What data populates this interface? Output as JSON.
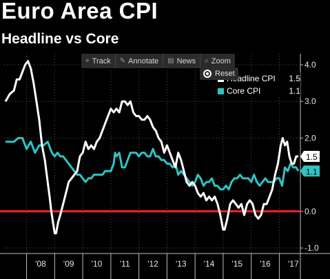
{
  "header": {
    "title": "Euro Area CPI",
    "subtitle": "Headline vs Core"
  },
  "toolbar": {
    "items": [
      {
        "label": "Track",
        "icon": "crosshair-icon",
        "glyph": "⌖"
      },
      {
        "label": "Annotate",
        "icon": "pencil-icon",
        "glyph": "✎"
      },
      {
        "label": "News",
        "icon": "news-icon",
        "glyph": "▤"
      },
      {
        "label": "Zoom",
        "icon": "magnifier-icon",
        "glyph": "⌕"
      }
    ],
    "reset_label": "Reset"
  },
  "legend": [
    {
      "name": "Headline CPI",
      "value": "1.5",
      "color": "#ffffff"
    },
    {
      "name": "Core CPI",
      "value": "1.1",
      "color": "#2ec4c4"
    }
  ],
  "colors": {
    "background": "#000000",
    "headline": "#ffffff",
    "core": "#2ec4c4",
    "zero_line": "#ff2020"
  },
  "chart_data": {
    "type": "line",
    "title": "Euro Area CPI",
    "subtitle": "Headline vs Core",
    "x_range": [
      2007.2,
      2017.75
    ],
    "y_range": [
      -1.15,
      4.3
    ],
    "y_ticks": [
      {
        "value": 4.0,
        "label": "4.0"
      },
      {
        "value": 3.0,
        "label": "3.0"
      },
      {
        "value": 2.0,
        "label": "2.0"
      },
      {
        "value": 0.0,
        "label": "0.0"
      },
      {
        "value": -1.0,
        "label": "-1.0"
      }
    ],
    "x_ticks": [
      {
        "value": 2008,
        "label": "'08"
      },
      {
        "value": 2009,
        "label": "'09"
      },
      {
        "value": 2010,
        "label": "'10"
      },
      {
        "value": 2011,
        "label": "'11"
      },
      {
        "value": 2012,
        "label": "'12"
      },
      {
        "value": 2013,
        "label": "'13"
      },
      {
        "value": 2014,
        "label": "'14"
      },
      {
        "value": 2015,
        "label": "'15"
      },
      {
        "value": 2016,
        "label": "'16"
      },
      {
        "value": 2017,
        "label": "'17"
      }
    ],
    "reference_line": {
      "y": 0.0
    },
    "last_value_labels": [
      {
        "series": "Headline CPI",
        "value": 1.5,
        "label": "1.5"
      },
      {
        "series": "Core CPI",
        "value": 1.1,
        "label": "1.1"
      }
    ],
    "series": [
      {
        "name": "Headline CPI",
        "color": "#ffffff",
        "points": [
          [
            2007.25,
            3.0
          ],
          [
            2007.4,
            3.2
          ],
          [
            2007.55,
            3.3
          ],
          [
            2007.65,
            3.6
          ],
          [
            2007.75,
            3.6
          ],
          [
            2007.85,
            3.8
          ],
          [
            2007.95,
            4.0
          ],
          [
            2008.05,
            4.1
          ],
          [
            2008.15,
            3.9
          ],
          [
            2008.25,
            3.5
          ],
          [
            2008.35,
            3.0
          ],
          [
            2008.45,
            2.5
          ],
          [
            2008.55,
            1.8
          ],
          [
            2008.65,
            1.4
          ],
          [
            2008.75,
            0.8
          ],
          [
            2008.82,
            0.4
          ],
          [
            2008.88,
            0.0
          ],
          [
            2008.94,
            -0.3
          ],
          [
            2009.0,
            -0.6
          ],
          [
            2009.05,
            -0.6
          ],
          [
            2009.12,
            -0.3
          ],
          [
            2009.2,
            -0.1
          ],
          [
            2009.3,
            0.2
          ],
          [
            2009.4,
            0.5
          ],
          [
            2009.5,
            0.8
          ],
          [
            2009.6,
            0.9
          ],
          [
            2009.7,
            1.0
          ],
          [
            2009.8,
            1.1
          ],
          [
            2009.9,
            1.5
          ],
          [
            2010.0,
            1.6
          ],
          [
            2010.1,
            1.9
          ],
          [
            2010.2,
            1.7
          ],
          [
            2010.3,
            1.8
          ],
          [
            2010.4,
            1.7
          ],
          [
            2010.5,
            1.9
          ],
          [
            2010.6,
            2.0
          ],
          [
            2010.7,
            2.2
          ],
          [
            2010.8,
            2.4
          ],
          [
            2010.9,
            2.6
          ],
          [
            2011.0,
            2.8
          ],
          [
            2011.1,
            2.7
          ],
          [
            2011.2,
            2.8
          ],
          [
            2011.3,
            2.7
          ],
          [
            2011.4,
            3.0
          ],
          [
            2011.5,
            3.0
          ],
          [
            2011.6,
            2.9
          ],
          [
            2011.7,
            3.0
          ],
          [
            2011.8,
            2.7
          ],
          [
            2011.9,
            2.6
          ],
          [
            2012.0,
            2.6
          ],
          [
            2012.1,
            2.5
          ],
          [
            2012.2,
            2.5
          ],
          [
            2012.3,
            2.6
          ],
          [
            2012.4,
            2.5
          ],
          [
            2012.5,
            2.3
          ],
          [
            2012.6,
            2.2
          ],
          [
            2012.7,
            2.0
          ],
          [
            2012.8,
            1.9
          ],
          [
            2012.9,
            1.6
          ],
          [
            2013.0,
            1.8
          ],
          [
            2013.1,
            1.6
          ],
          [
            2013.2,
            1.4
          ],
          [
            2013.3,
            1.2
          ],
          [
            2013.4,
            1.6
          ],
          [
            2013.5,
            1.4
          ],
          [
            2013.6,
            1.1
          ],
          [
            2013.7,
            0.8
          ],
          [
            2013.8,
            0.7
          ],
          [
            2013.9,
            0.8
          ],
          [
            2014.0,
            0.7
          ],
          [
            2014.1,
            0.5
          ],
          [
            2014.2,
            0.4
          ],
          [
            2014.3,
            0.5
          ],
          [
            2014.4,
            0.3
          ],
          [
            2014.5,
            0.4
          ],
          [
            2014.6,
            0.3
          ],
          [
            2014.7,
            0.4
          ],
          [
            2014.8,
            0.2
          ],
          [
            2014.9,
            -0.1
          ],
          [
            2015.0,
            -0.5
          ],
          [
            2015.05,
            -0.5
          ],
          [
            2015.15,
            -0.2
          ],
          [
            2015.25,
            0.2
          ],
          [
            2015.35,
            0.3
          ],
          [
            2015.45,
            0.2
          ],
          [
            2015.55,
            0.1
          ],
          [
            2015.65,
            0.2
          ],
          [
            2015.75,
            -0.1
          ],
          [
            2015.85,
            0.2
          ],
          [
            2015.95,
            0.3
          ],
          [
            2016.05,
            0.2
          ],
          [
            2016.15,
            -0.1
          ],
          [
            2016.25,
            -0.2
          ],
          [
            2016.35,
            -0.1
          ],
          [
            2016.45,
            0.2
          ],
          [
            2016.55,
            0.2
          ],
          [
            2016.65,
            0.4
          ],
          [
            2016.75,
            0.6
          ],
          [
            2016.85,
            1.0
          ],
          [
            2016.95,
            1.3
          ],
          [
            2017.05,
            1.8
          ],
          [
            2017.12,
            2.0
          ],
          [
            2017.2,
            1.8
          ],
          [
            2017.28,
            1.9
          ],
          [
            2017.36,
            1.5
          ],
          [
            2017.44,
            1.3
          ],
          [
            2017.52,
            1.3
          ],
          [
            2017.6,
            1.5
          ],
          [
            2017.68,
            1.5
          ]
        ]
      },
      {
        "name": "Core CPI",
        "color": "#2ec4c4",
        "points": [
          [
            2007.25,
            1.9
          ],
          [
            2007.4,
            1.9
          ],
          [
            2007.55,
            1.9
          ],
          [
            2007.7,
            2.0
          ],
          [
            2007.85,
            2.0
          ],
          [
            2008.0,
            1.7
          ],
          [
            2008.15,
            1.9
          ],
          [
            2008.3,
            1.6
          ],
          [
            2008.45,
            1.8
          ],
          [
            2008.6,
            1.8
          ],
          [
            2008.75,
            1.9
          ],
          [
            2008.9,
            1.6
          ],
          [
            2009.0,
            1.5
          ],
          [
            2009.1,
            1.6
          ],
          [
            2009.2,
            1.5
          ],
          [
            2009.3,
            1.5
          ],
          [
            2009.4,
            1.4
          ],
          [
            2009.5,
            1.3
          ],
          [
            2009.6,
            1.2
          ],
          [
            2009.7,
            1.1
          ],
          [
            2009.8,
            1.0
          ],
          [
            2009.9,
            1.0
          ],
          [
            2010.0,
            0.9
          ],
          [
            2010.1,
            0.8
          ],
          [
            2010.2,
            0.9
          ],
          [
            2010.3,
            0.9
          ],
          [
            2010.4,
            1.0
          ],
          [
            2010.5,
            1.0
          ],
          [
            2010.6,
            1.0
          ],
          [
            2010.7,
            1.0
          ],
          [
            2010.8,
            1.1
          ],
          [
            2010.9,
            1.1
          ],
          [
            2011.0,
            1.1
          ],
          [
            2011.1,
            1.3
          ],
          [
            2011.15,
            1.6
          ],
          [
            2011.2,
            1.5
          ],
          [
            2011.3,
            1.6
          ],
          [
            2011.4,
            1.2
          ],
          [
            2011.5,
            1.2
          ],
          [
            2011.6,
            1.4
          ],
          [
            2011.7,
            1.6
          ],
          [
            2011.8,
            1.6
          ],
          [
            2011.9,
            1.6
          ],
          [
            2012.0,
            1.5
          ],
          [
            2012.1,
            1.6
          ],
          [
            2012.2,
            1.6
          ],
          [
            2012.3,
            1.5
          ],
          [
            2012.4,
            1.5
          ],
          [
            2012.5,
            1.7
          ],
          [
            2012.6,
            1.5
          ],
          [
            2012.7,
            1.5
          ],
          [
            2012.8,
            1.4
          ],
          [
            2012.9,
            1.4
          ],
          [
            2013.0,
            1.3
          ],
          [
            2013.1,
            1.3
          ],
          [
            2013.2,
            1.2
          ],
          [
            2013.3,
            1.3
          ],
          [
            2013.4,
            1.0
          ],
          [
            2013.5,
            1.1
          ],
          [
            2013.6,
            1.0
          ],
          [
            2013.7,
            0.9
          ],
          [
            2013.8,
            0.8
          ],
          [
            2013.9,
            0.7
          ],
          [
            2014.0,
            0.8
          ],
          [
            2014.1,
            1.0
          ],
          [
            2014.2,
            0.9
          ],
          [
            2014.3,
            0.7
          ],
          [
            2014.4,
            0.8
          ],
          [
            2014.5,
            0.8
          ],
          [
            2014.6,
            0.9
          ],
          [
            2014.7,
            0.7
          ],
          [
            2014.8,
            0.7
          ],
          [
            2014.9,
            0.6
          ],
          [
            2015.0,
            0.6
          ],
          [
            2015.1,
            0.7
          ],
          [
            2015.2,
            0.6
          ],
          [
            2015.3,
            0.8
          ],
          [
            2015.4,
            0.9
          ],
          [
            2015.5,
            0.9
          ],
          [
            2015.6,
            1.0
          ],
          [
            2015.7,
            0.9
          ],
          [
            2015.8,
            0.9
          ],
          [
            2015.9,
            0.9
          ],
          [
            2016.0,
            0.8
          ],
          [
            2016.1,
            1.0
          ],
          [
            2016.2,
            0.8
          ],
          [
            2016.3,
            0.7
          ],
          [
            2016.4,
            0.8
          ],
          [
            2016.5,
            0.9
          ],
          [
            2016.6,
            0.8
          ],
          [
            2016.7,
            0.8
          ],
          [
            2016.8,
            0.8
          ],
          [
            2016.9,
            0.9
          ],
          [
            2017.0,
            0.9
          ],
          [
            2017.1,
            0.7
          ],
          [
            2017.2,
            1.2
          ],
          [
            2017.3,
            1.1
          ],
          [
            2017.4,
            1.3
          ],
          [
            2017.5,
            1.2
          ],
          [
            2017.6,
            1.2
          ],
          [
            2017.68,
            1.1
          ]
        ]
      }
    ]
  }
}
